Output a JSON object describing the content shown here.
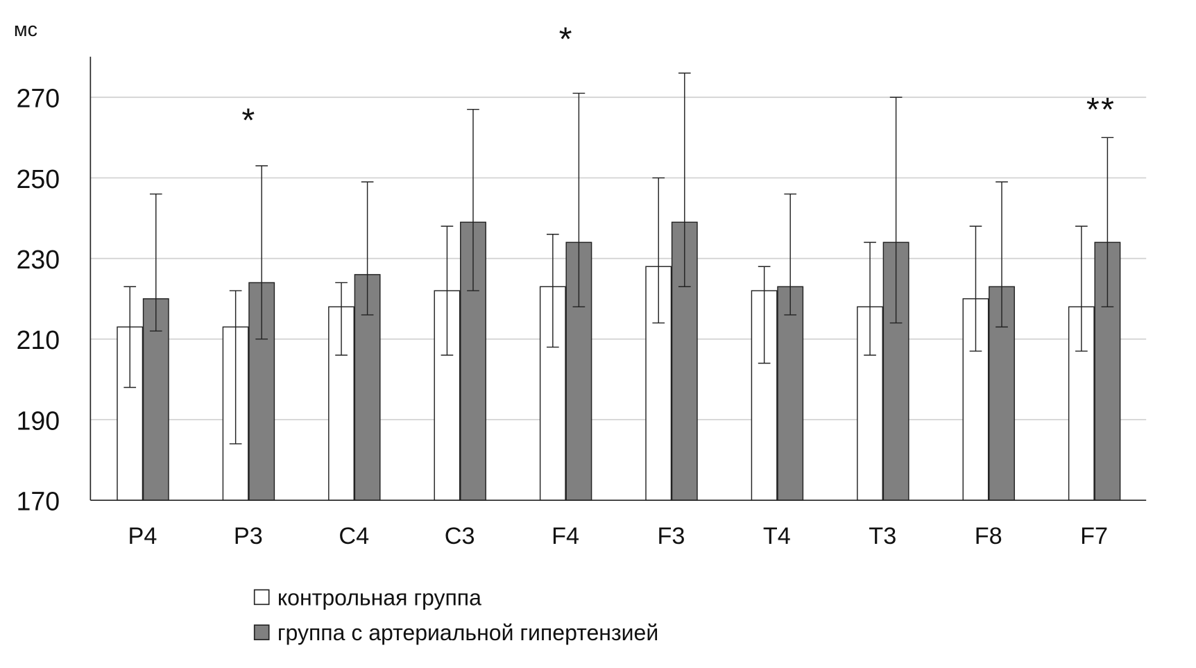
{
  "chart_data": {
    "type": "bar",
    "title": "",
    "ylabel": "мс",
    "xlabel": "",
    "ylim": [
      170,
      280
    ],
    "yticks": [
      170,
      190,
      210,
      230,
      250,
      270
    ],
    "grid": true,
    "categories": [
      "P4",
      "P3",
      "C4",
      "C3",
      "F4",
      "F3",
      "T4",
      "T3",
      "F8",
      "F7"
    ],
    "series": [
      {
        "name": "контрольная группа",
        "color": "#ffffff",
        "values": [
          213,
          213,
          218,
          222,
          223,
          228,
          222,
          218,
          220,
          218
        ],
        "err_low": [
          198,
          184,
          206,
          206,
          208,
          214,
          204,
          206,
          207,
          207
        ],
        "err_high": [
          223,
          222,
          224,
          238,
          236,
          250,
          228,
          234,
          238,
          238
        ]
      },
      {
        "name": "группа с артериальной гипертензией",
        "color": "#808080",
        "values": [
          220,
          224,
          226,
          239,
          234,
          239,
          223,
          234,
          223,
          234
        ],
        "err_low": [
          212,
          210,
          216,
          222,
          218,
          223,
          216,
          214,
          213,
          218
        ],
        "err_high": [
          246,
          253,
          249,
          267,
          271,
          276,
          246,
          270,
          249,
          260
        ]
      }
    ],
    "annotations": [
      {
        "category": "P3",
        "text": "*"
      },
      {
        "category": "F4",
        "text": "*"
      },
      {
        "category": "F7",
        "text": "**"
      }
    ],
    "legend_position": "bottom"
  }
}
